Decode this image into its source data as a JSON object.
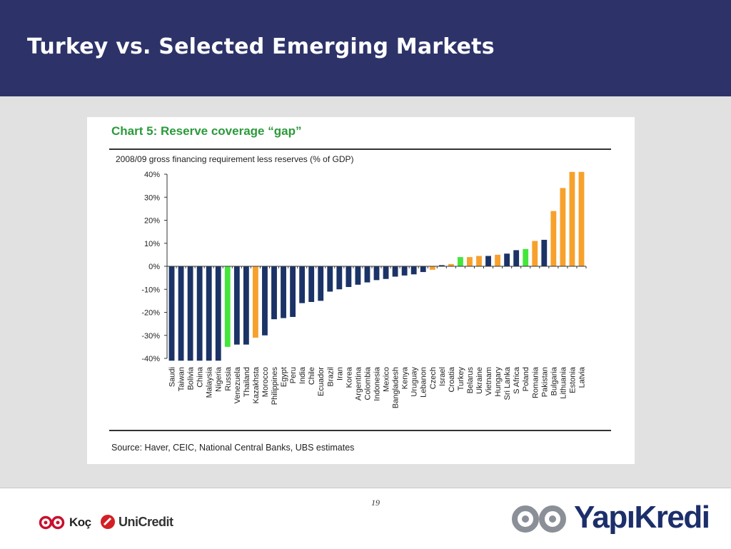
{
  "slide": {
    "title": "Turkey vs. Selected Emerging Markets",
    "page_number": "19"
  },
  "card": {
    "title": "Chart 5: Reserve coverage “gap”",
    "source": "Source: Haver, CEIC, National Central Banks, UBS estimates"
  },
  "logos": {
    "koc": "Koç",
    "unicredit": "UniCredit",
    "yapikredi": "YapıKredi"
  },
  "colors": {
    "header_bg": "#2d3369",
    "navy": "#1b3366",
    "orange": "#f7a12c",
    "green": "#44e63c",
    "title_green": "#2a9a3a"
  },
  "chart_data": {
    "type": "bar",
    "ylabel": "2008/09 gross financing requirement less reserves (% of GDP)",
    "ylim": [
      -40,
      40
    ],
    "yticks": [
      40,
      30,
      20,
      10,
      0,
      -10,
      -20,
      -30,
      -40
    ],
    "ytick_labels": [
      "40%",
      "30%",
      "20%",
      "10%",
      "0%",
      "-10%",
      "-20%",
      "-30%",
      "-40%"
    ],
    "grid": false,
    "categories": [
      "Saudi",
      "Taiwan",
      "Bolivia",
      "China",
      "Malaysia",
      "Nigeria",
      "Russia",
      "Venezuela",
      "Thailand",
      "Kazakhsta",
      "Morocco",
      "Philippines",
      "Egypt",
      "Peru",
      "India",
      "Chile",
      "Ecuador",
      "Brazil",
      "Iran",
      "Korea",
      "Argentina",
      "Colombia",
      "Indonesia",
      "Mexico",
      "Bangladesh",
      "Kenya",
      "Uruguay",
      "Lebanon",
      "Czech",
      "Israel",
      "Croatia",
      "Turkey",
      "Belarus",
      "Ukraine",
      "Vietnam",
      "Hungary",
      "Sri Lanka",
      "S Africa",
      "Poland",
      "Romania",
      "Pakistan",
      "Bulgaria",
      "Lithuania",
      "Estonia",
      "Latvia"
    ],
    "values": [
      -41,
      -41,
      -41,
      -41,
      -41,
      -41,
      -35,
      -34,
      -34,
      -31,
      -30,
      -23,
      -22.5,
      -22,
      -16,
      -15.5,
      -15,
      -11,
      -10,
      -9,
      -8,
      -7,
      -6,
      -5.5,
      -4.5,
      -4,
      -3.5,
      -2.5,
      -1.5,
      0.5,
      1,
      4,
      4,
      4.5,
      4.5,
      5,
      5.5,
      7,
      7.5,
      11,
      11.5,
      24,
      34,
      41,
      41
    ],
    "colors": [
      "navy",
      "navy",
      "navy",
      "navy",
      "navy",
      "navy",
      "green",
      "navy",
      "navy",
      "orange",
      "navy",
      "navy",
      "navy",
      "navy",
      "navy",
      "navy",
      "navy",
      "navy",
      "navy",
      "navy",
      "navy",
      "navy",
      "navy",
      "navy",
      "navy",
      "navy",
      "navy",
      "navy",
      "orange",
      "navy",
      "orange",
      "green",
      "orange",
      "orange",
      "navy",
      "orange",
      "navy",
      "navy",
      "green",
      "orange",
      "navy",
      "orange",
      "orange",
      "orange",
      "orange"
    ]
  }
}
